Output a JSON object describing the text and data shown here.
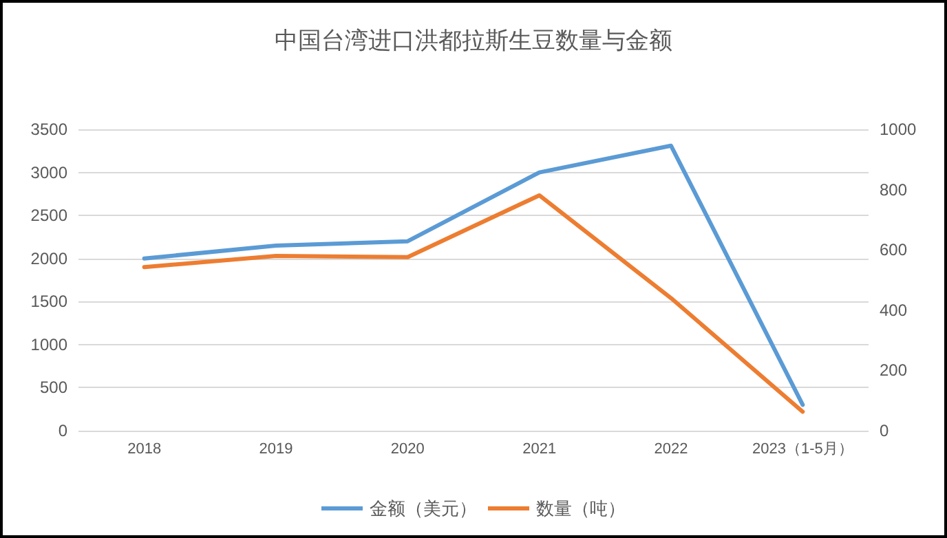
{
  "chart_data": {
    "type": "line",
    "title": "中国台湾进口洪都拉斯生豆数量与金额",
    "categories": [
      "2018",
      "2019",
      "2020",
      "2021",
      "2022",
      "2023（1-5月）"
    ],
    "series": [
      {
        "name": "金额（美元）",
        "color": "#5b9bd5",
        "values": [
          2000,
          2150,
          2200,
          3000,
          3310,
          300
        ]
      },
      {
        "name": "数量（吨）",
        "color": "#ed7d31",
        "axis": "y2",
        "values": [
          543,
          580,
          576,
          781,
          440,
          63
        ]
      }
    ],
    "ylim": [
      0,
      3500
    ],
    "yticks": [
      0,
      500,
      1000,
      1500,
      2000,
      2500,
      3000,
      3500
    ],
    "y2lim": [
      0,
      1000
    ],
    "y2ticks": [
      0,
      200,
      400,
      600,
      800,
      1000
    ],
    "grid": "y",
    "legend": "bottom",
    "marker": "none",
    "line_style": "solid"
  }
}
